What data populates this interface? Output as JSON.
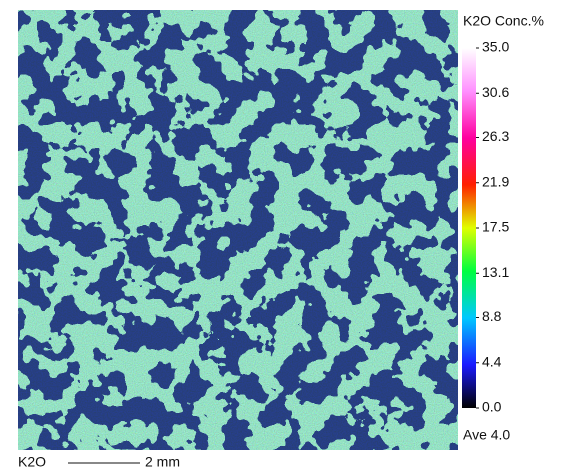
{
  "map": {
    "element": "K2O",
    "unit_title": "K2O  Conc.%",
    "average": "Ave 4.0",
    "scale_label": "2 mm"
  },
  "colorbar": {
    "range": [
      0,
      35
    ],
    "ticks": [
      {
        "value": 35,
        "label": "35.0"
      },
      {
        "value": 30.6,
        "label": "30.6"
      },
      {
        "value": 26.3,
        "label": "26.3"
      },
      {
        "value": 21.9,
        "label": "21.9"
      },
      {
        "value": 17.5,
        "label": "17.5"
      },
      {
        "value": 13.1,
        "label": "13.1"
      },
      {
        "value": 8.8,
        "label": "8.8"
      },
      {
        "value": 4.4,
        "label": "4.4"
      },
      {
        "value": 0,
        "label": "0.0"
      }
    ]
  }
}
